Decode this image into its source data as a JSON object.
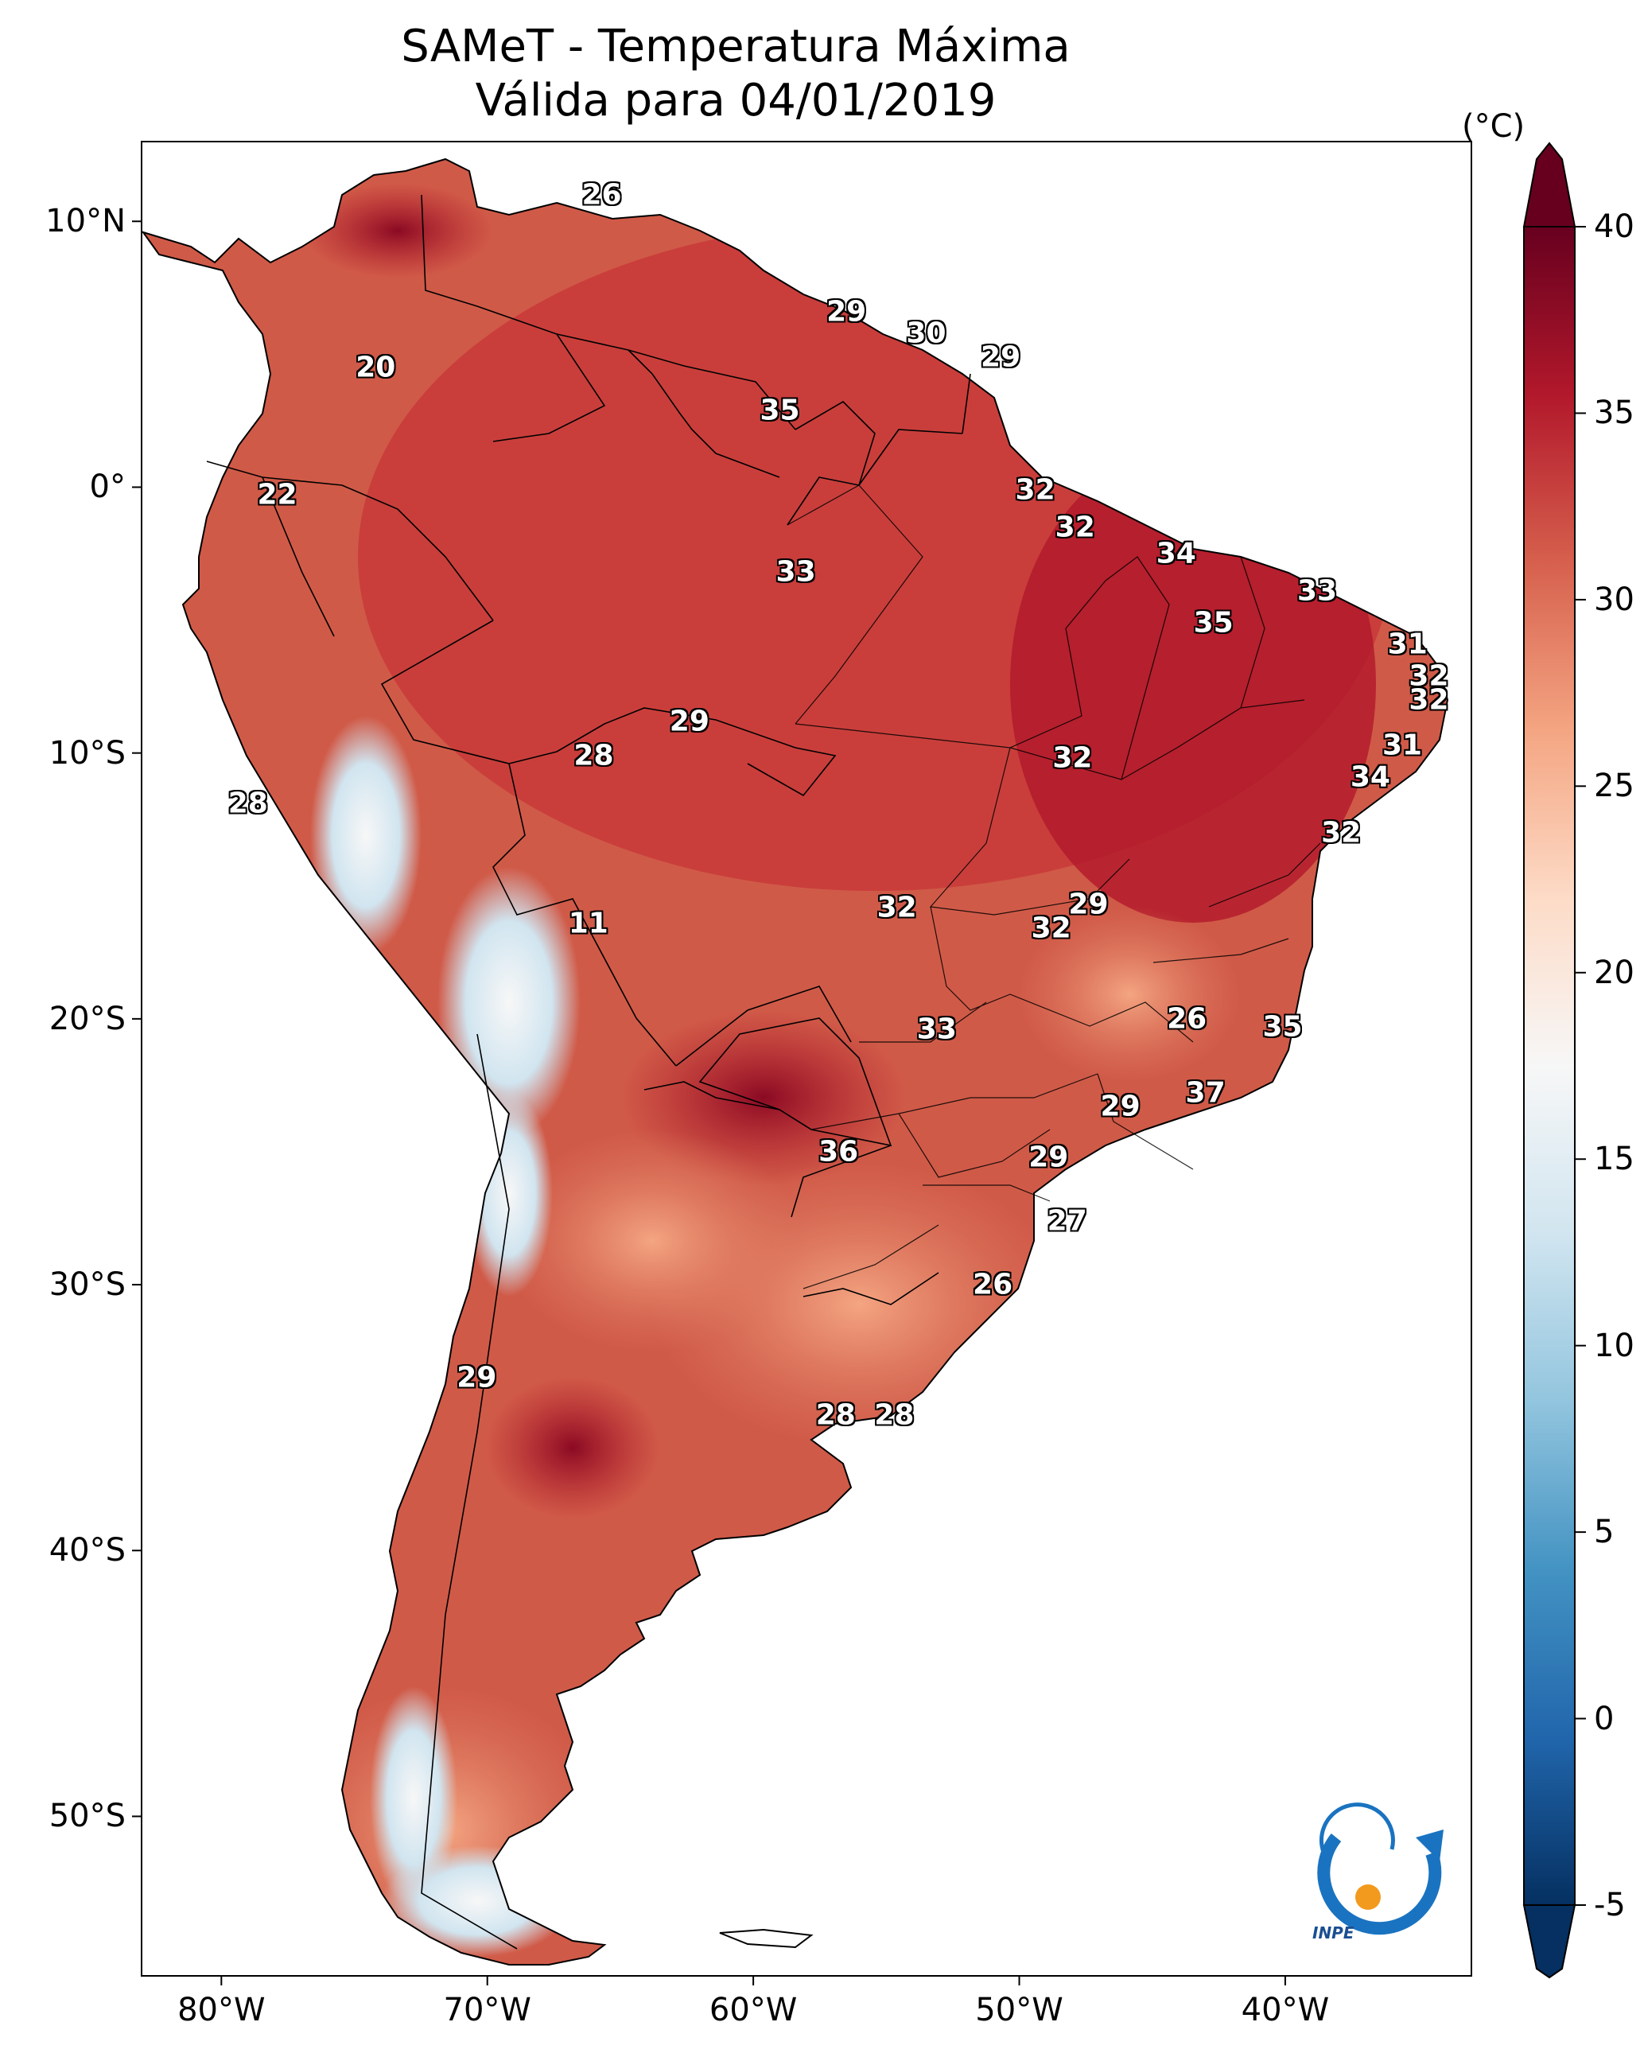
{
  "title": {
    "line1": "SAMeT - Temperatura Máxima",
    "line2": "Válida para 04/01/2019"
  },
  "axes": {
    "lat_ticks": [
      {
        "label": "10°N",
        "lat": 10
      },
      {
        "label": "0°",
        "lat": 0
      },
      {
        "label": "10°S",
        "lat": -10
      },
      {
        "label": "20°S",
        "lat": -20
      },
      {
        "label": "30°S",
        "lat": -30
      },
      {
        "label": "40°S",
        "lat": -40
      },
      {
        "label": "50°S",
        "lat": -50
      }
    ],
    "lon_ticks": [
      {
        "label": "80°W",
        "lon": -80
      },
      {
        "label": "70°W",
        "lon": -70
      },
      {
        "label": "60°W",
        "lon": -60
      },
      {
        "label": "50°W",
        "lon": -50
      },
      {
        "label": "40°W",
        "lon": -40
      }
    ]
  },
  "colorbar": {
    "unit": "(°C)",
    "min": -5,
    "max": 40,
    "ticks": [
      {
        "label": "40",
        "value": 40
      },
      {
        "label": "35",
        "value": 35
      },
      {
        "label": "30",
        "value": 30
      },
      {
        "label": "25",
        "value": 25
      },
      {
        "label": "20",
        "value": 20
      },
      {
        "label": "15",
        "value": 15
      },
      {
        "label": "10",
        "value": 10
      },
      {
        "label": "5",
        "value": 5
      },
      {
        "label": "0",
        "value": 0
      },
      {
        "label": "-5",
        "value": -5
      }
    ],
    "colors": [
      "#053061",
      "#2166ac",
      "#4393c3",
      "#92c5de",
      "#d1e5f0",
      "#f7f7f7",
      "#fddbc7",
      "#f4a582",
      "#d6604d",
      "#b2182b",
      "#67001f"
    ]
  },
  "temperature_labels": [
    {
      "text": "26",
      "lat": 11.0,
      "lon": -65.7
    },
    {
      "text": "29",
      "lat": 6.6,
      "lon": -56.5
    },
    {
      "text": "30",
      "lat": 5.8,
      "lon": -53.5
    },
    {
      "text": "29",
      "lat": 4.9,
      "lon": -50.7
    },
    {
      "text": "20",
      "lat": 4.5,
      "lon": -74.2
    },
    {
      "text": "35",
      "lat": 2.9,
      "lon": -59.0
    },
    {
      "text": "22",
      "lat": -0.3,
      "lon": -77.9
    },
    {
      "text": "32",
      "lat": -0.1,
      "lon": -49.4
    },
    {
      "text": "32",
      "lat": -1.5,
      "lon": -47.9
    },
    {
      "text": "34",
      "lat": -2.5,
      "lon": -44.1
    },
    {
      "text": "33",
      "lat": -3.2,
      "lon": -58.4
    },
    {
      "text": "33",
      "lat": -3.9,
      "lon": -38.8
    },
    {
      "text": "35",
      "lat": -5.1,
      "lon": -42.7
    },
    {
      "text": "31",
      "lat": -5.9,
      "lon": -35.4
    },
    {
      "text": "32",
      "lat": -7.1,
      "lon": -34.6
    },
    {
      "text": "32",
      "lat": -8.0,
      "lon": -34.6
    },
    {
      "text": "29",
      "lat": -8.8,
      "lon": -62.4
    },
    {
      "text": "31",
      "lat": -9.7,
      "lon": -35.6
    },
    {
      "text": "28",
      "lat": -10.1,
      "lon": -66.0
    },
    {
      "text": "32",
      "lat": -10.2,
      "lon": -48.0
    },
    {
      "text": "34",
      "lat": -10.9,
      "lon": -36.8
    },
    {
      "text": "28",
      "lat": -11.9,
      "lon": -79.0
    },
    {
      "text": "32",
      "lat": -13.0,
      "lon": -37.9
    },
    {
      "text": "29",
      "lat": -15.7,
      "lon": -47.4
    },
    {
      "text": "32",
      "lat": -15.8,
      "lon": -54.6
    },
    {
      "text": "11",
      "lat": -16.4,
      "lon": -66.2
    },
    {
      "text": "32",
      "lat": -16.6,
      "lon": -48.8
    },
    {
      "text": "26",
      "lat": -20.0,
      "lon": -43.7
    },
    {
      "text": "35",
      "lat": -20.3,
      "lon": -40.1
    },
    {
      "text": "33",
      "lat": -20.4,
      "lon": -53.1
    },
    {
      "text": "37",
      "lat": -22.8,
      "lon": -43.0
    },
    {
      "text": "29",
      "lat": -23.3,
      "lon": -46.2
    },
    {
      "text": "36",
      "lat": -25.0,
      "lon": -56.8
    },
    {
      "text": "29",
      "lat": -25.2,
      "lon": -48.9
    },
    {
      "text": "27",
      "lat": -27.6,
      "lon": -48.2
    },
    {
      "text": "26",
      "lat": -30.0,
      "lon": -51.0
    },
    {
      "text": "29",
      "lat": -33.5,
      "lon": -70.4
    },
    {
      "text": "28",
      "lat": -34.9,
      "lon": -56.9
    },
    {
      "text": "28",
      "lat": -34.9,
      "lon": -54.7
    }
  ],
  "logo": {
    "text": "INPE"
  }
}
